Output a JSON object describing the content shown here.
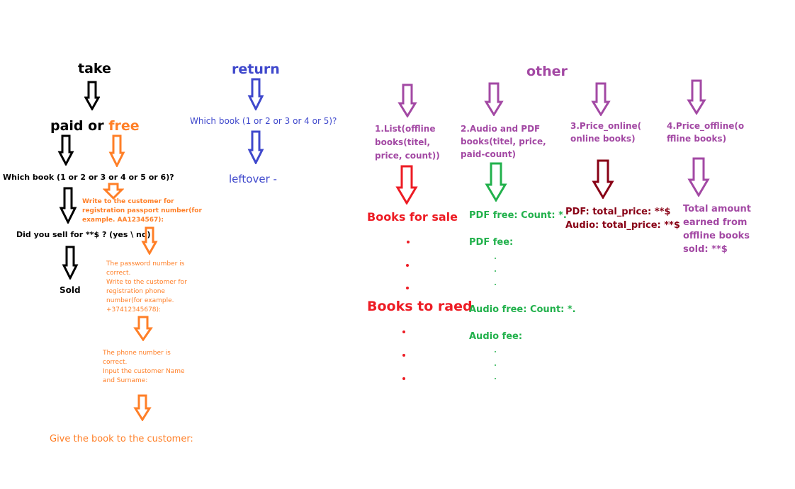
{
  "colors": {
    "black": "#000000",
    "orange": "#ff7f27",
    "blue": "#3f48cc",
    "purple": "#a349a4",
    "red": "#ed1c24",
    "green": "#22b14c",
    "dark_red": "#880015"
  },
  "take": {
    "title": "take",
    "paid": "paid or ",
    "free": "free",
    "which_book": "Which book (1 or 2 or 3 or 4 or 5 or 6)?",
    "did_you_sell": "Did you sell for **$ ? (yes \\ no)",
    "sold": "Sold",
    "passport_prompt": "Write to the customer for\nregistration passport number(for\nexample. AA1234567):",
    "phone_prompt": "The password number is\ncorrect.\nWrite to the customer for\nregistration phone\nnumber(for example.\n+37412345678):",
    "name_prompt": "The phone number is\ncorrect.\nInput the customer Name\nand Surname:",
    "give_book": "Give the book to the customer:"
  },
  "return": {
    "title": "return",
    "which_book": "Which book (1 or 2 or 3 or 4 or 5)?",
    "leftover": "leftover -"
  },
  "other": {
    "title": "other",
    "list_header": "1.List(offline\nbooks(titel,\nprice, count))",
    "audio_pdf_header": "2.Audio and PDF\nbooks(titel, price,\npaid-count)",
    "price_online_header": "3.Price_online(\nonline books)",
    "price_offline_header": "4.Price_offline(o\nffline books)",
    "books_for_sale": "Books for sale",
    "books_to_read": "Books to raed",
    "pdf_free": "PDF free: Count: *.",
    "pdf_fee": "PDF fee:",
    "audio_free": "Audio free: Count: *.",
    "audio_fee": "Audio fee:",
    "online_prices": "PDF: total_price: **$\nAudio: total_price: **$",
    "offline_total": "Total amount\nearned from\noffline books\nsold: **$"
  }
}
